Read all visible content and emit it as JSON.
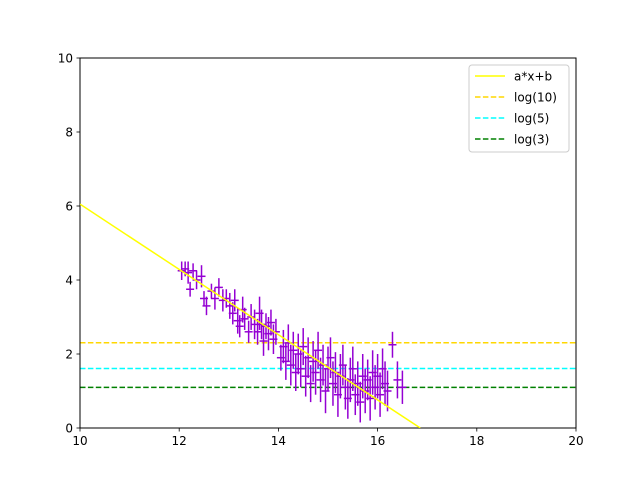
{
  "chart_data": {
    "type": "scatter",
    "xlim": [
      10,
      20
    ],
    "ylim": [
      0,
      10
    ],
    "x_ticks": [
      "10",
      "12",
      "14",
      "16",
      "18",
      "20"
    ],
    "y_ticks": [
      "0",
      "2",
      "4",
      "6",
      "8",
      "10"
    ],
    "x_tick_values": [
      10,
      12,
      14,
      16,
      18,
      20
    ],
    "y_tick_values": [
      0,
      2,
      4,
      6,
      8,
      10
    ],
    "grid": false,
    "legend_position": "top-right",
    "legend": [
      "a*x+b",
      "log(10)",
      "log(5)",
      "log(3)"
    ],
    "fit_line": {
      "label": "a*x+b",
      "color": "#ffff00",
      "x": [
        10,
        16.86
      ],
      "y": [
        6.05,
        0
      ]
    },
    "hlines": [
      {
        "label": "log(10)",
        "value": 2.303,
        "color": "#ffd700",
        "style": "dashed",
        "x": [
          10,
          20
        ]
      },
      {
        "label": "log(5)",
        "value": 1.609,
        "color": "#00ffff",
        "style": "dashed",
        "x": [
          10,
          20
        ]
      },
      {
        "label": "log(3)",
        "value": 1.099,
        "color": "#008000",
        "style": "dashed",
        "x": [
          10,
          20
        ]
      }
    ],
    "errorbar_series": {
      "color": "#9400d3",
      "points": [
        [
          12.05,
          4.25,
          0.25
        ],
        [
          12.12,
          4.3,
          0.2
        ],
        [
          12.18,
          4.2,
          0.3
        ],
        [
          12.22,
          3.75,
          0.2
        ],
        [
          12.28,
          4.25,
          0.2
        ],
        [
          12.35,
          4.0,
          0.25
        ],
        [
          12.45,
          4.1,
          0.3
        ],
        [
          12.5,
          3.5,
          0.2
        ],
        [
          12.55,
          3.3,
          0.25
        ],
        [
          12.65,
          3.7,
          0.2
        ],
        [
          12.72,
          3.5,
          0.3
        ],
        [
          12.8,
          3.8,
          0.25
        ],
        [
          12.88,
          3.45,
          0.3
        ],
        [
          12.95,
          3.5,
          0.25
        ],
        [
          13.02,
          3.3,
          0.35
        ],
        [
          13.08,
          3.1,
          0.3
        ],
        [
          13.12,
          3.45,
          0.3
        ],
        [
          13.18,
          2.9,
          0.35
        ],
        [
          13.22,
          2.75,
          0.3
        ],
        [
          13.28,
          3.2,
          0.35
        ],
        [
          13.32,
          2.95,
          0.3
        ],
        [
          13.4,
          2.6,
          0.3
        ],
        [
          13.45,
          3.0,
          0.35
        ],
        [
          13.52,
          2.8,
          0.4
        ],
        [
          13.58,
          2.6,
          0.35
        ],
        [
          13.62,
          3.1,
          0.45
        ],
        [
          13.66,
          2.8,
          0.4
        ],
        [
          13.7,
          2.35,
          0.4
        ],
        [
          13.75,
          2.75,
          0.35
        ],
        [
          13.8,
          2.55,
          0.45
        ],
        [
          13.85,
          2.85,
          0.35
        ],
        [
          13.9,
          2.4,
          0.4
        ],
        [
          13.95,
          2.6,
          0.35
        ],
        [
          14.05,
          1.9,
          0.35
        ],
        [
          14.1,
          2.2,
          0.45
        ],
        [
          14.15,
          1.8,
          0.5
        ],
        [
          14.2,
          2.3,
          0.5
        ],
        [
          14.25,
          1.7,
          0.55
        ],
        [
          14.3,
          2.1,
          0.5
        ],
        [
          14.35,
          1.5,
          0.5
        ],
        [
          14.4,
          2.0,
          0.55
        ],
        [
          14.45,
          1.6,
          0.5
        ],
        [
          14.5,
          2.2,
          0.5
        ],
        [
          14.55,
          1.4,
          0.55
        ],
        [
          14.6,
          1.9,
          0.55
        ],
        [
          14.65,
          1.2,
          0.5
        ],
        [
          14.7,
          1.8,
          0.55
        ],
        [
          14.75,
          1.5,
          0.6
        ],
        [
          14.8,
          2.1,
          0.5
        ],
        [
          14.85,
          1.3,
          0.6
        ],
        [
          14.9,
          1.7,
          0.55
        ],
        [
          14.95,
          1.0,
          0.6
        ],
        [
          15.0,
          1.6,
          0.6
        ],
        [
          15.05,
          1.9,
          0.55
        ],
        [
          15.1,
          1.2,
          0.6
        ],
        [
          15.15,
          1.5,
          0.55
        ],
        [
          15.2,
          0.9,
          0.6
        ],
        [
          15.25,
          1.4,
          0.6
        ],
        [
          15.3,
          1.7,
          0.55
        ],
        [
          15.35,
          1.1,
          0.6
        ],
        [
          15.4,
          0.8,
          0.55
        ],
        [
          15.45,
          1.3,
          0.6
        ],
        [
          15.5,
          1.6,
          0.6
        ],
        [
          15.55,
          0.9,
          0.55
        ],
        [
          15.6,
          1.2,
          0.6
        ],
        [
          15.65,
          0.7,
          0.55
        ],
        [
          15.7,
          1.4,
          0.6
        ],
        [
          15.75,
          1.0,
          0.6
        ],
        [
          15.8,
          1.3,
          0.55
        ],
        [
          15.85,
          0.8,
          0.6
        ],
        [
          15.9,
          1.5,
          0.6
        ],
        [
          15.95,
          1.1,
          0.6
        ],
        [
          16.0,
          1.4,
          0.6
        ],
        [
          16.05,
          0.9,
          0.6
        ],
        [
          16.1,
          1.6,
          0.55
        ],
        [
          16.15,
          1.2,
          0.6
        ],
        [
          16.2,
          1.0,
          0.55
        ],
        [
          16.3,
          2.25,
          0.35
        ],
        [
          16.4,
          1.3,
          0.5
        ],
        [
          16.5,
          1.1,
          0.45
        ]
      ]
    }
  }
}
